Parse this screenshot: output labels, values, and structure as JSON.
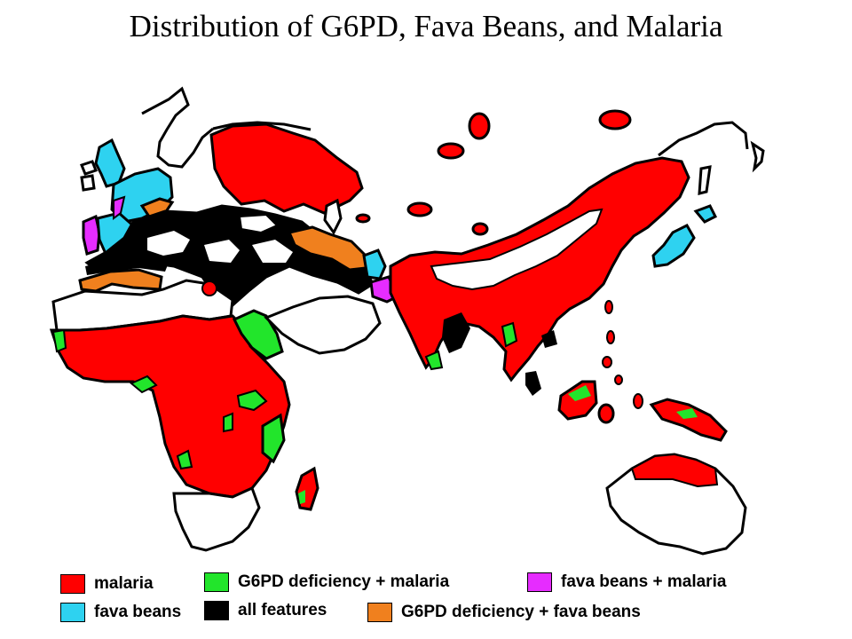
{
  "title": "Distribution of G6PD, Fava Beans, and Malaria",
  "colors": {
    "malaria": "#ff0000",
    "g6pd_malaria": "#22e52b",
    "fava_malaria": "#e62cff",
    "fava_beans": "#2ed2f0",
    "all_features": "#000000",
    "g6pd_fava": "#f0801e",
    "land": "#ffffff",
    "coast": "#000000"
  },
  "legend": [
    {
      "key": "malaria",
      "label": "malaria",
      "color": "#ff0000"
    },
    {
      "key": "g6pd_malaria",
      "label": "G6PD deficiency + malaria",
      "color": "#22e52b"
    },
    {
      "key": "fava_malaria",
      "label": "fava beans + malaria",
      "color": "#e62cff"
    },
    {
      "key": "fava_beans",
      "label": "fava beans",
      "color": "#2ed2f0"
    },
    {
      "key": "all_features",
      "label": "all features",
      "color": "#000000"
    },
    {
      "key": "g6pd_fava",
      "label": "G6PD deficiency + fava beans",
      "color": "#f0801e"
    }
  ]
}
